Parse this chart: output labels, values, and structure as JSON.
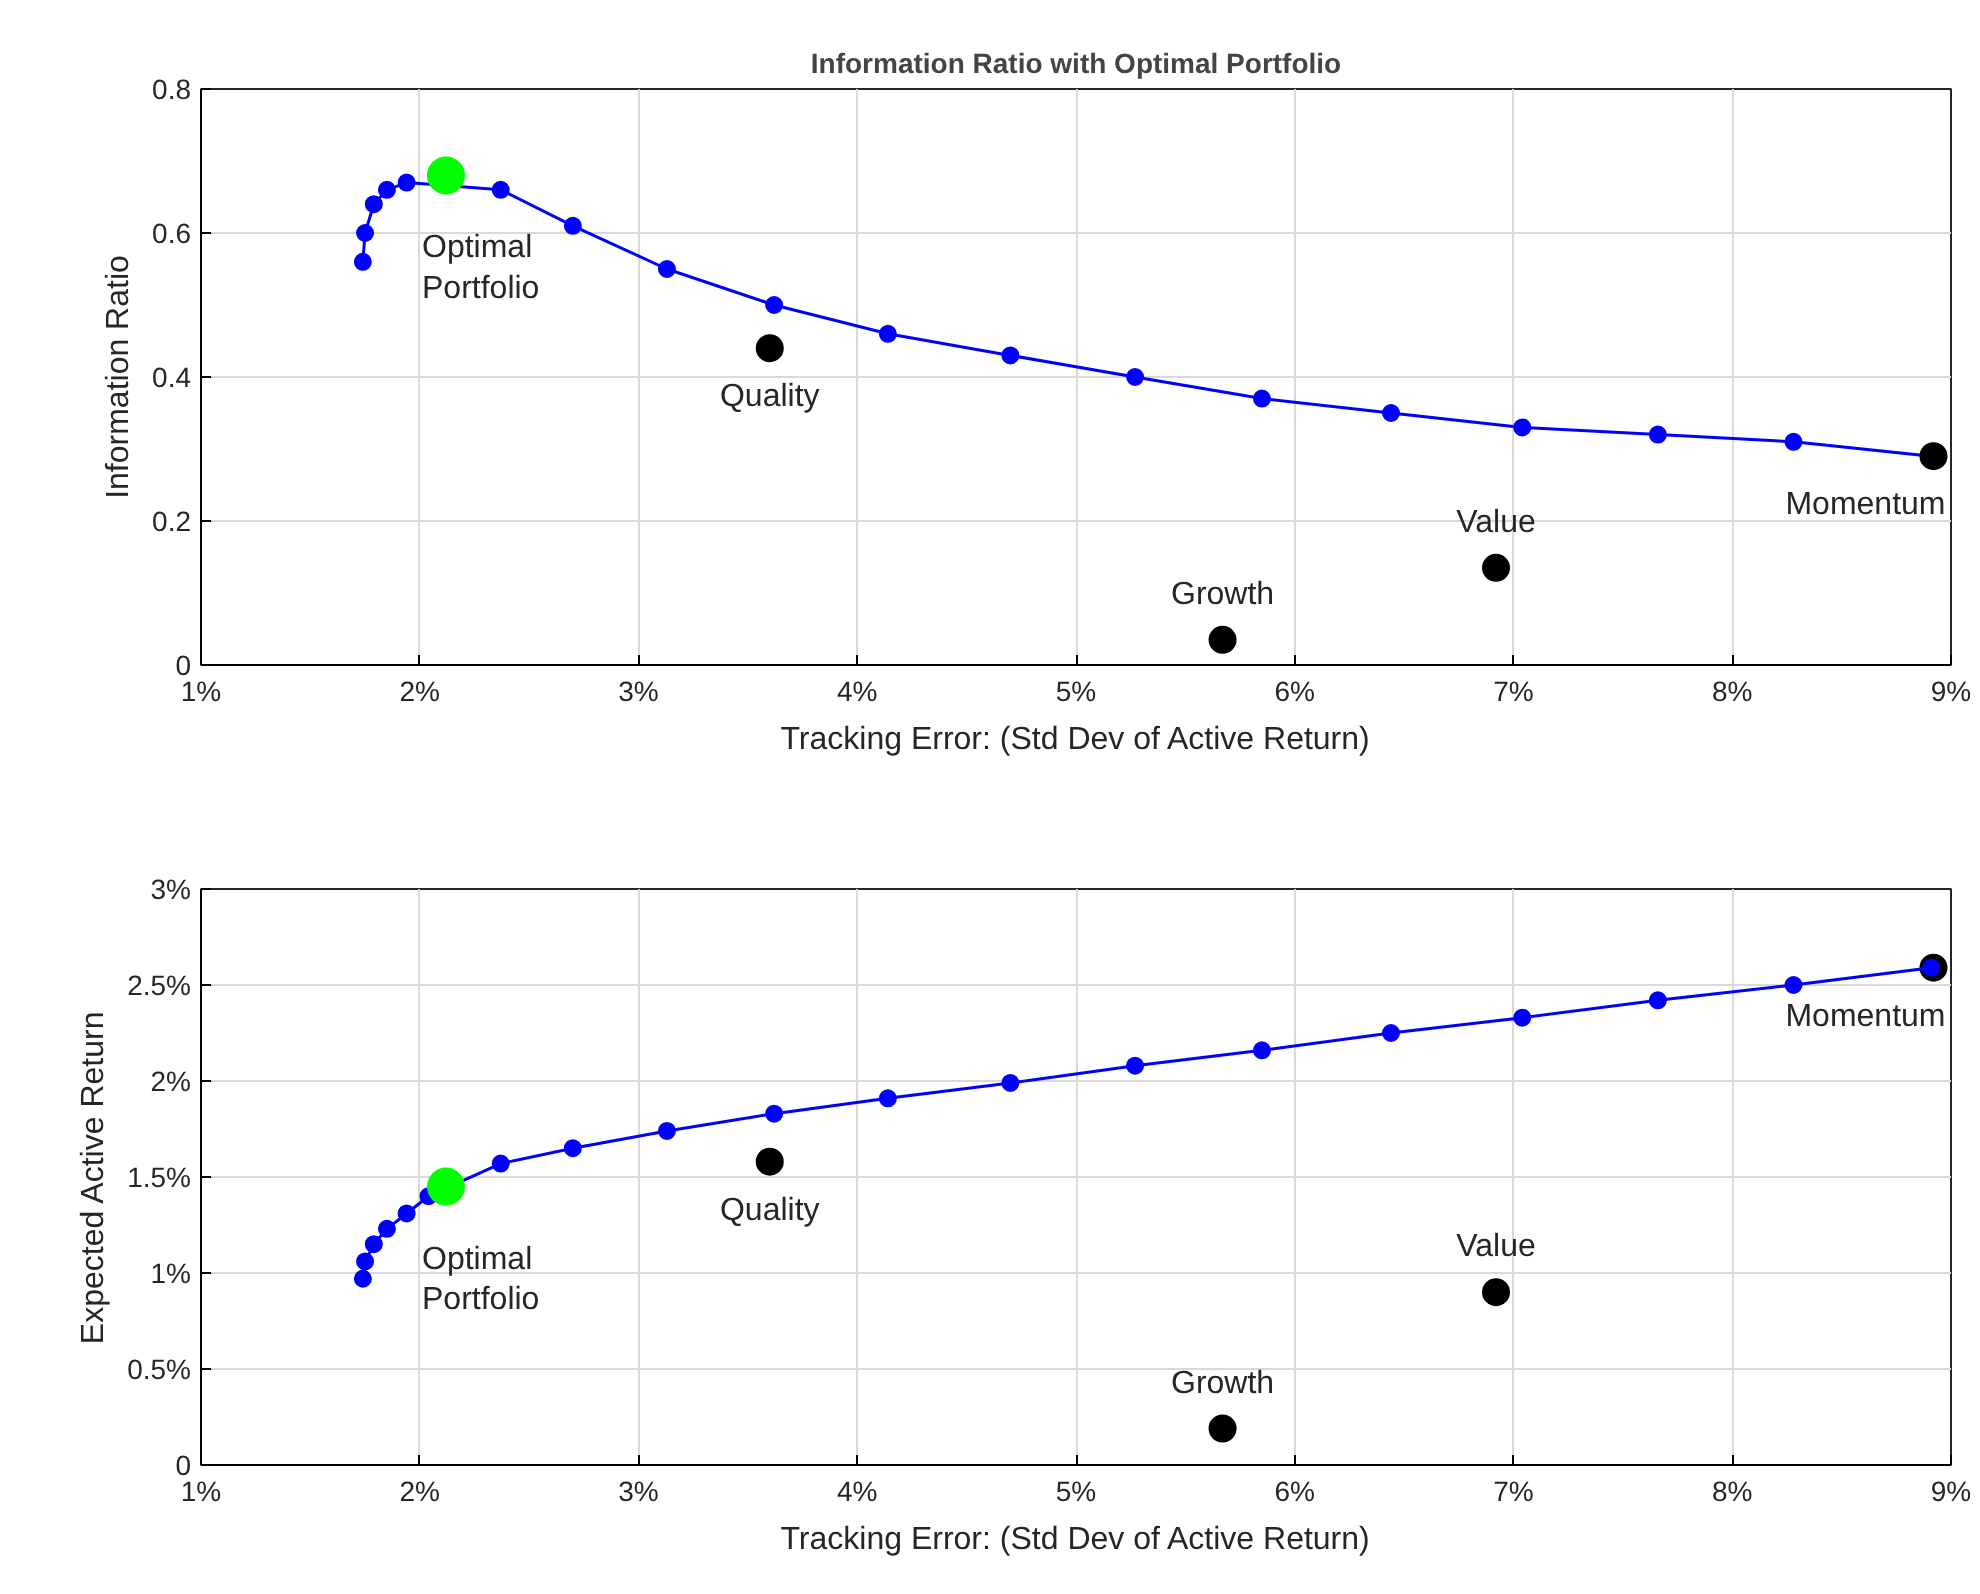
{
  "chart_data": [
    {
      "type": "scatter",
      "title": "Information Ratio with Optimal Portfolio",
      "xlabel": "Tracking Error: (Std Dev of Active Return)",
      "ylabel": "Information Ratio",
      "xlim": [
        1,
        9
      ],
      "xticks": [
        {
          "value": 1,
          "label": "1%"
        },
        {
          "value": 2,
          "label": "2%"
        },
        {
          "value": 3,
          "label": "3%"
        },
        {
          "value": 4,
          "label": "4%"
        },
        {
          "value": 5,
          "label": "5%"
        },
        {
          "value": 6,
          "label": "6%"
        },
        {
          "value": 7,
          "label": "7%"
        },
        {
          "value": 8,
          "label": "8%"
        },
        {
          "value": 9,
          "label": "9%"
        }
      ],
      "ylim": [
        0,
        0.8
      ],
      "yticks": [
        0,
        0.2,
        0.4,
        0.6,
        0.8
      ],
      "grid": true,
      "marker": "circle",
      "line_style": "solid",
      "series": [
        {
          "type": "line",
          "color": "#0000ff",
          "x": [
            1.74,
            1.75,
            1.79,
            1.85,
            1.94,
            2.04,
            2.37,
            2.7,
            3.13,
            3.62,
            4.14,
            4.7,
            5.27,
            5.85,
            6.44,
            7.04,
            7.66,
            8.28,
            8.91
          ],
          "values": [
            0.56,
            0.6,
            0.64,
            0.66,
            0.67,
            null,
            0.66,
            0.61,
            0.55,
            0.5,
            0.46,
            0.43,
            0.4,
            0.37,
            0.35,
            0.33,
            0.32,
            0.31,
            0.29
          ]
        },
        {
          "color": "#000000",
          "x": [
            3.6,
            5.67,
            6.92,
            8.92
          ],
          "values": [
            0.44,
            0.035,
            0.135,
            0.29
          ]
        },
        {
          "color": "#00ff00",
          "x": [
            2.12
          ],
          "values": [
            0.68
          ]
        }
      ],
      "annotations": [
        {
          "text": "Optimal\nPortfolio",
          "x": 2.12,
          "y": 0.68
        },
        {
          "text": "Quality",
          "x": 3.6,
          "y": 0.44
        },
        {
          "text": "Growth",
          "x": 5.67,
          "y": 0.035
        },
        {
          "text": "Value",
          "x": 6.92,
          "y": 0.135
        },
        {
          "text": "Momentum",
          "x": 8.92,
          "y": 0.29
        }
      ]
    },
    {
      "type": "scatter",
      "xlabel": "Tracking Error: (Std Dev of Active Return)",
      "ylabel": "Expected Active Return",
      "xlim": [
        1,
        9
      ],
      "xticks": [
        {
          "value": 1,
          "label": "1%"
        },
        {
          "value": 2,
          "label": "2%"
        },
        {
          "value": 3,
          "label": "3%"
        },
        {
          "value": 4,
          "label": "4%"
        },
        {
          "value": 5,
          "label": "5%"
        },
        {
          "value": 6,
          "label": "6%"
        },
        {
          "value": 7,
          "label": "7%"
        },
        {
          "value": 8,
          "label": "8%"
        },
        {
          "value": 9,
          "label": "9%"
        }
      ],
      "ylim": [
        0,
        3
      ],
      "yticks": [
        0,
        {
          "value": 0.5,
          "label": "0.5%"
        },
        {
          "value": 1,
          "label": "1%"
        },
        {
          "value": 1.5,
          "label": "1.5%"
        },
        {
          "value": 2,
          "label": "2%"
        },
        {
          "value": 2.5,
          "label": "2.5%"
        },
        {
          "value": 3,
          "label": "3%"
        }
      ],
      "grid": true,
      "marker": "circle",
      "line_style": "solid",
      "series": [
        {
          "color": "#000000",
          "x": [
            3.6,
            5.67,
            6.92,
            8.92
          ],
          "values": [
            1.58,
            0.19,
            0.9,
            2.59
          ]
        },
        {
          "type": "line",
          "color": "#0000ff",
          "x": [
            1.74,
            1.75,
            1.79,
            1.85,
            1.94,
            2.04,
            2.37,
            2.7,
            3.13,
            3.62,
            4.14,
            4.7,
            5.27,
            5.85,
            6.44,
            7.04,
            7.66,
            8.28,
            8.91
          ],
          "values": [
            0.97,
            1.06,
            1.15,
            1.23,
            1.31,
            1.4,
            1.57,
            1.65,
            1.74,
            1.83,
            1.91,
            1.99,
            2.08,
            2.16,
            2.25,
            2.33,
            2.42,
            2.5,
            2.59
          ]
        },
        {
          "color": "#00ff00",
          "x": [
            2.12
          ],
          "values": [
            1.45
          ]
        }
      ],
      "annotations": [
        {
          "text": "Optimal\nPortfolio",
          "x": 2.12,
          "y": 1.45
        },
        {
          "text": "Quality",
          "x": 3.6,
          "y": 1.58
        },
        {
          "text": "Growth",
          "x": 5.67,
          "y": 0.19
        },
        {
          "text": "Value",
          "x": 6.92,
          "y": 0.9
        },
        {
          "text": "Momentum",
          "x": 8.92,
          "y": 2.59
        }
      ]
    }
  ]
}
